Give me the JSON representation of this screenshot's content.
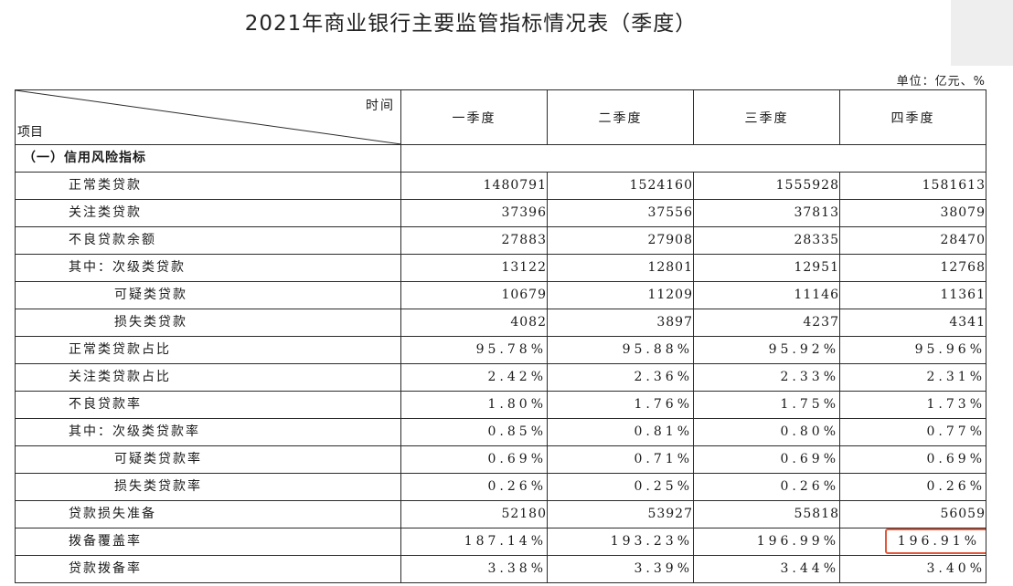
{
  "title": "2021年商业银行主要监管指标情况表（季度）",
  "unit": "单位：亿元、%",
  "header": {
    "time_label": "时间",
    "item_label": "项目",
    "quarters": [
      "一季度",
      "二季度",
      "三季度",
      "四季度"
    ]
  },
  "section": "（一）信用风险指标",
  "rows": [
    {
      "label": "正常类贷款",
      "values": [
        "1480791",
        "1524160",
        "1555928",
        "1581613"
      ]
    },
    {
      "label": "关注类贷款",
      "values": [
        "37396",
        "37556",
        "37813",
        "38079"
      ]
    },
    {
      "label": "不良贷款余额",
      "values": [
        "27883",
        "27908",
        "28335",
        "28470"
      ]
    },
    {
      "label": "其中：次级类贷款",
      "values": [
        "13122",
        "12801",
        "12951",
        "12768"
      ]
    },
    {
      "label": "可疑类贷款",
      "values": [
        "10679",
        "11209",
        "11146",
        "11361"
      ]
    },
    {
      "label": "损失类贷款",
      "values": [
        "4082",
        "3897",
        "4237",
        "4341"
      ]
    },
    {
      "label": "正常类贷款占比",
      "values": [
        "95.78%",
        "95.88%",
        "95.92%",
        "95.96%"
      ]
    },
    {
      "label": "关注类贷款占比",
      "values": [
        "2.42%",
        "2.36%",
        "2.33%",
        "2.31%"
      ]
    },
    {
      "label": "不良贷款率",
      "values": [
        "1.80%",
        "1.76%",
        "1.75%",
        "1.73%"
      ]
    },
    {
      "label": "其中：次级类贷款率",
      "values": [
        "0.85%",
        "0.81%",
        "0.80%",
        "0.77%"
      ]
    },
    {
      "label": "可疑类贷款率",
      "values": [
        "0.69%",
        "0.71%",
        "0.69%",
        "0.69%"
      ]
    },
    {
      "label": "损失类贷款率",
      "values": [
        "0.26%",
        "0.25%",
        "0.26%",
        "0.26%"
      ]
    },
    {
      "label": "贷款损失准备",
      "values": [
        "52180",
        "53927",
        "55818",
        "56059"
      ]
    },
    {
      "label": "拨备覆盖率",
      "values": [
        "187.14%",
        "193.23%",
        "196.99%",
        "196.91%"
      ]
    },
    {
      "label": "贷款拨备率",
      "values": [
        "3.38%",
        "3.39%",
        "3.44%",
        "3.40%"
      ]
    }
  ],
  "highlight_color": "#e2573b"
}
